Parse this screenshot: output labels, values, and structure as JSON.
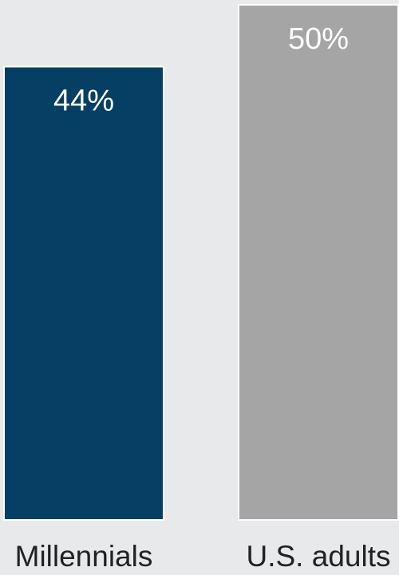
{
  "chart_data": {
    "type": "bar",
    "categories": [
      "Millennials",
      "U.S. adults"
    ],
    "values": [
      44,
      50
    ],
    "value_labels": [
      "44%",
      "50%"
    ],
    "ylim": [
      0,
      50
    ],
    "grid": false,
    "legend": "none",
    "colors": [
      "#053f63",
      "#a5a5a5"
    ],
    "background": "#e8e9eb"
  }
}
